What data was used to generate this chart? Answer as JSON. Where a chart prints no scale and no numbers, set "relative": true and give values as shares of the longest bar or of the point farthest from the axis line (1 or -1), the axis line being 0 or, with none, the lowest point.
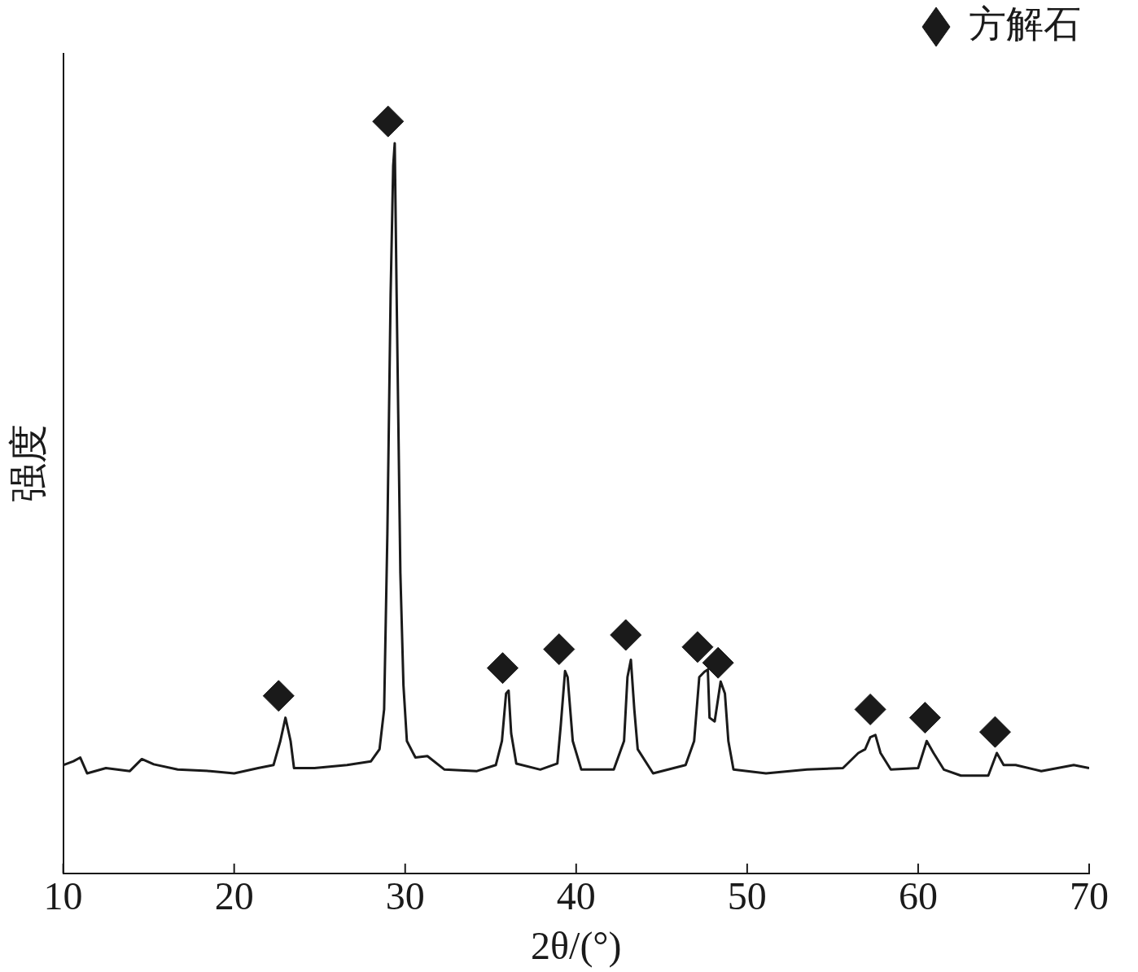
{
  "chart_data": {
    "type": "line",
    "xlabel": "2θ/(°)",
    "ylabel": "强度",
    "relative": true,
    "xlim": [
      10,
      70
    ],
    "xticks": [
      10,
      20,
      30,
      40,
      50,
      60,
      70
    ],
    "grid": false,
    "legend": "top right",
    "series": [
      {
        "color": "#1a1a1a",
        "x": [
          10.0,
          10.6,
          11.0,
          11.4,
          12.5,
          13.9,
          14.6,
          15.3,
          16.7,
          18.6,
          20.0,
          21.4,
          22.3,
          22.7,
          23.0,
          23.3,
          23.5,
          24.7,
          26.6,
          28.0,
          28.5,
          28.77,
          28.96,
          29.15,
          29.3,
          29.39,
          29.5,
          29.72,
          29.9,
          30.1,
          30.6,
          31.3,
          32.3,
          34.2,
          35.3,
          35.66,
          35.9,
          36.05,
          36.2,
          36.5,
          37.9,
          38.9,
          39.1,
          39.35,
          39.5,
          39.8,
          40.3,
          42.2,
          42.8,
          43.0,
          43.2,
          43.4,
          43.6,
          44.5,
          46.4,
          46.9,
          47.2,
          47.5,
          47.7,
          47.8,
          48.1,
          48.45,
          48.7,
          48.9,
          49.2,
          51.1,
          53.5,
          55.6,
          56.5,
          56.9,
          57.2,
          57.5,
          57.8,
          58.4,
          60.0,
          60.5,
          60.9,
          61.5,
          62.5,
          64.1,
          64.6,
          65.0,
          65.7,
          67.2,
          69.1,
          70.0
        ],
        "values": [
          0.144,
          0.149,
          0.154,
          0.133,
          0.14,
          0.136,
          0.152,
          0.145,
          0.138,
          0.136,
          0.133,
          0.14,
          0.144,
          0.176,
          0.207,
          0.176,
          0.14,
          0.14,
          0.144,
          0.149,
          0.165,
          0.218,
          0.452,
          0.771,
          0.941,
          0.971,
          0.771,
          0.399,
          0.25,
          0.176,
          0.154,
          0.156,
          0.138,
          0.136,
          0.144,
          0.176,
          0.239,
          0.243,
          0.186,
          0.146,
          0.138,
          0.146,
          0.197,
          0.269,
          0.261,
          0.176,
          0.138,
          0.138,
          0.176,
          0.261,
          0.284,
          0.218,
          0.165,
          0.133,
          0.144,
          0.176,
          0.261,
          0.268,
          0.271,
          0.207,
          0.202,
          0.255,
          0.239,
          0.176,
          0.138,
          0.133,
          0.138,
          0.14,
          0.16,
          0.165,
          0.181,
          0.184,
          0.16,
          0.138,
          0.14,
          0.176,
          0.16,
          0.138,
          0.13,
          0.13,
          0.16,
          0.144,
          0.144,
          0.136,
          0.144,
          0.14
        ]
      },
      {
        "type": "scatter",
        "name": "方解石",
        "color": "#1a1a1a",
        "marker": "diamond",
        "x": [
          22.6,
          29.0,
          35.7,
          39.0,
          42.9,
          47.1,
          48.3,
          57.2,
          60.4,
          64.5
        ],
        "values": [
          0.236,
          1.0,
          0.273,
          0.298,
          0.317,
          0.301,
          0.28,
          0.218,
          0.207,
          0.188
        ]
      }
    ]
  }
}
